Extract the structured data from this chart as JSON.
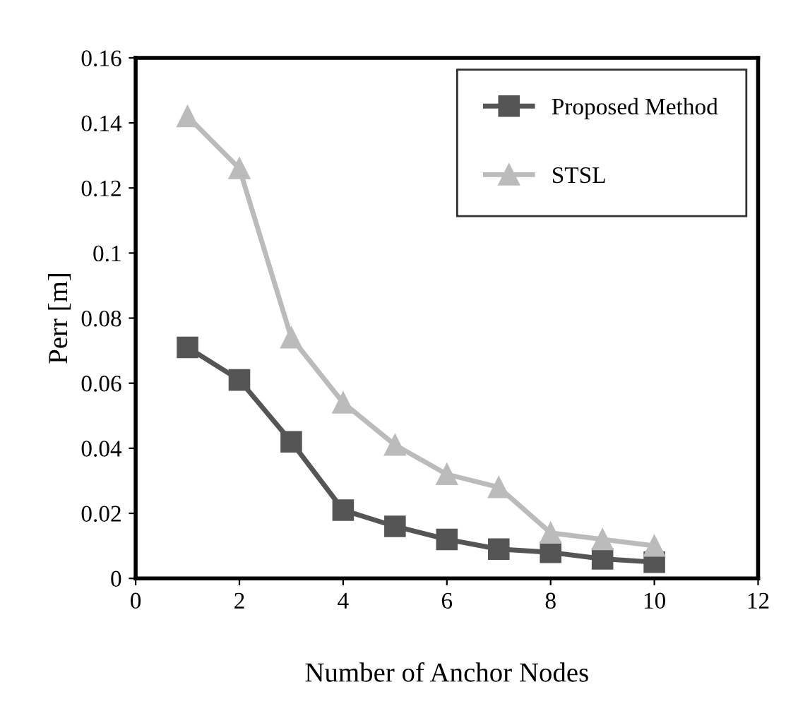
{
  "chart_data": {
    "type": "line",
    "xlabel": "Number of Anchor Nodes",
    "ylabel": "Perr [m]",
    "x": [
      1,
      2,
      3,
      4,
      5,
      6,
      7,
      8,
      9,
      10
    ],
    "series": [
      {
        "name": "Proposed Method",
        "color": "#555555",
        "marker": "square",
        "values": [
          0.071,
          0.061,
          0.042,
          0.021,
          0.016,
          0.012,
          0.009,
          0.008,
          0.006,
          0.005
        ]
      },
      {
        "name": "STSL",
        "color": "#bbbbbb",
        "marker": "triangle",
        "values": [
          0.142,
          0.126,
          0.074,
          0.054,
          0.041,
          0.032,
          0.028,
          0.014,
          0.012,
          0.01
        ]
      }
    ],
    "xlim": [
      0,
      12
    ],
    "xticks": [
      0,
      2,
      4,
      6,
      8,
      10,
      12
    ],
    "ylim": [
      0,
      0.16
    ],
    "yticks": [
      {
        "value": 0,
        "label": "0"
      },
      0.02,
      0.04,
      0.06,
      0.08,
      {
        "value": 0.1,
        "label": "0.1"
      },
      0.12,
      0.14,
      0.16
    ],
    "grid": false,
    "legend": "top right",
    "line_style": "solid"
  }
}
